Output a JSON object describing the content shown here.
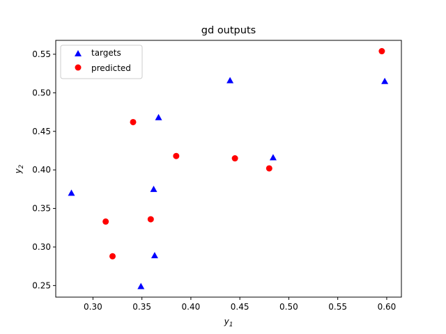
{
  "chart_data": {
    "type": "scatter",
    "title": "gd outputs",
    "xlabel": {
      "base": "y",
      "sub": "1"
    },
    "ylabel": {
      "base": "y",
      "sub": "2"
    },
    "xlim": [
      0.262,
      0.615
    ],
    "ylim": [
      0.235,
      0.568
    ],
    "xticks": [
      "0.30",
      "0.35",
      "0.40",
      "0.45",
      "0.50",
      "0.55",
      "0.60"
    ],
    "yticks": [
      "0.25",
      "0.30",
      "0.35",
      "0.40",
      "0.45",
      "0.50",
      "0.55"
    ],
    "grid": false,
    "legend_position": "upper-left",
    "series": [
      {
        "name": "targets",
        "marker": "triangle",
        "color": "#0000ff",
        "points": [
          [
            0.278,
            0.37
          ],
          [
            0.349,
            0.249
          ],
          [
            0.362,
            0.375
          ],
          [
            0.363,
            0.289
          ],
          [
            0.367,
            0.468
          ],
          [
            0.44,
            0.516
          ],
          [
            0.484,
            0.416
          ],
          [
            0.598,
            0.515
          ]
        ]
      },
      {
        "name": "predicted",
        "marker": "circle",
        "color": "#ff0000",
        "points": [
          [
            0.313,
            0.333
          ],
          [
            0.32,
            0.288
          ],
          [
            0.341,
            0.462
          ],
          [
            0.359,
            0.336
          ],
          [
            0.385,
            0.418
          ],
          [
            0.445,
            0.415
          ],
          [
            0.48,
            0.402
          ],
          [
            0.595,
            0.554
          ]
        ]
      }
    ]
  }
}
